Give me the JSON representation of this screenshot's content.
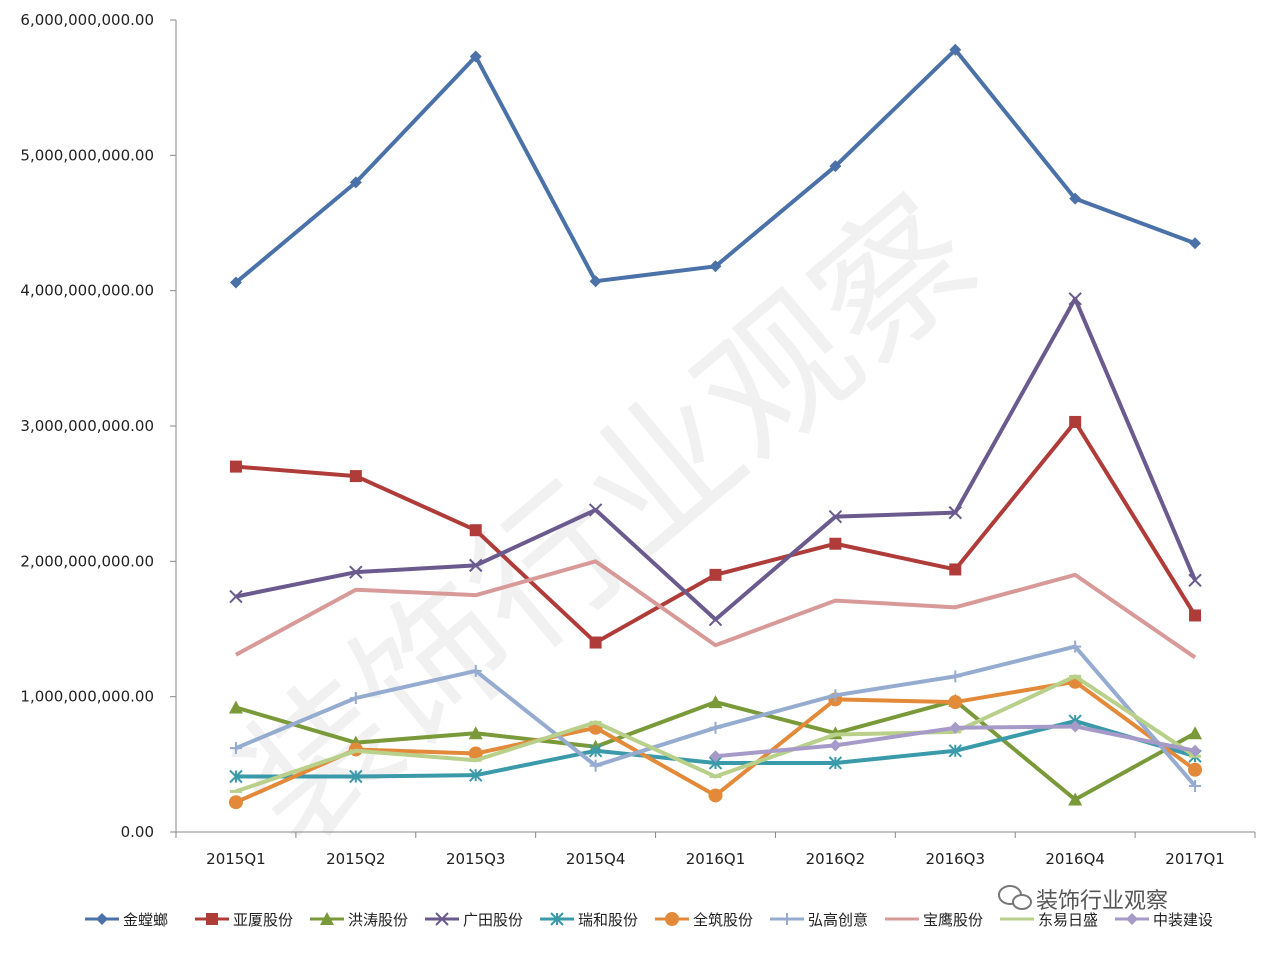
{
  "chart_data": {
    "type": "line",
    "title": "",
    "xlabel": "",
    "ylabel": "",
    "categories": [
      "2015Q1",
      "2015Q2",
      "2015Q3",
      "2015Q4",
      "2016Q1",
      "2016Q2",
      "2016Q3",
      "2016Q4",
      "2017Q1"
    ],
    "ylim": [
      0,
      6000000000
    ],
    "yticks": [
      0,
      1000000000,
      2000000000,
      3000000000,
      4000000000,
      5000000000,
      6000000000
    ],
    "ytick_labels": [
      "0.00",
      "1,000,000,000.00",
      "2,000,000,000.00",
      "3,000,000,000.00",
      "4,000,000,000.00",
      "5,000,000,000.00",
      "6,000,000,000.00"
    ],
    "grid": false,
    "legend_position": "bottom",
    "series": [
      {
        "name": "金螳螂",
        "color": "#4a72a8",
        "marker": "diamond",
        "values": [
          4060000000,
          4800000000,
          5730000000,
          4070000000,
          4180000000,
          4920000000,
          5780000000,
          4680000000,
          4350000000
        ]
      },
      {
        "name": "亚厦股份",
        "color": "#b03c3a",
        "marker": "square",
        "values": [
          2700000000,
          2630000000,
          2230000000,
          1400000000,
          1900000000,
          2130000000,
          1940000000,
          3030000000,
          1600000000
        ]
      },
      {
        "name": "洪涛股份",
        "color": "#7a9a3a",
        "marker": "triangle",
        "values": [
          920000000,
          660000000,
          730000000,
          630000000,
          960000000,
          730000000,
          970000000,
          240000000,
          730000000
        ]
      },
      {
        "name": "广田股份",
        "color": "#6a5a8e",
        "marker": "x",
        "values": [
          1740000000,
          1920000000,
          1970000000,
          2380000000,
          1570000000,
          2330000000,
          2360000000,
          3940000000,
          1860000000
        ]
      },
      {
        "name": "瑞和股份",
        "color": "#3a9aaa",
        "marker": "star",
        "values": [
          410000000,
          410000000,
          420000000,
          600000000,
          510000000,
          510000000,
          600000000,
          820000000,
          560000000
        ]
      },
      {
        "name": "全筑股份",
        "color": "#e38a3a",
        "marker": "circle",
        "values": [
          220000000,
          610000000,
          580000000,
          770000000,
          270000000,
          980000000,
          960000000,
          1110000000,
          460000000
        ]
      },
      {
        "name": "弘高创意",
        "color": "#95acd0",
        "marker": "plus",
        "values": [
          620000000,
          990000000,
          1190000000,
          490000000,
          770000000,
          1010000000,
          1150000000,
          1370000000,
          340000000
        ]
      },
      {
        "name": "宝鹰股份",
        "color": "#d89a98",
        "marker": "none",
        "values": [
          1310000000,
          1790000000,
          1750000000,
          2000000000,
          1380000000,
          1710000000,
          1660000000,
          1900000000,
          1290000000
        ]
      },
      {
        "name": "东易日盛",
        "color": "#b8d08a",
        "marker": "dash",
        "values": [
          300000000,
          600000000,
          530000000,
          810000000,
          410000000,
          720000000,
          740000000,
          1150000000,
          560000000
        ]
      },
      {
        "name": "中装建设",
        "color": "#a69ac8",
        "marker": "diamond",
        "values": [
          null,
          null,
          null,
          null,
          560000000,
          640000000,
          770000000,
          780000000,
          600000000
        ]
      }
    ]
  },
  "watermark": {
    "text": "装饰行业观察",
    "corner_text": "装饰行业观察"
  }
}
